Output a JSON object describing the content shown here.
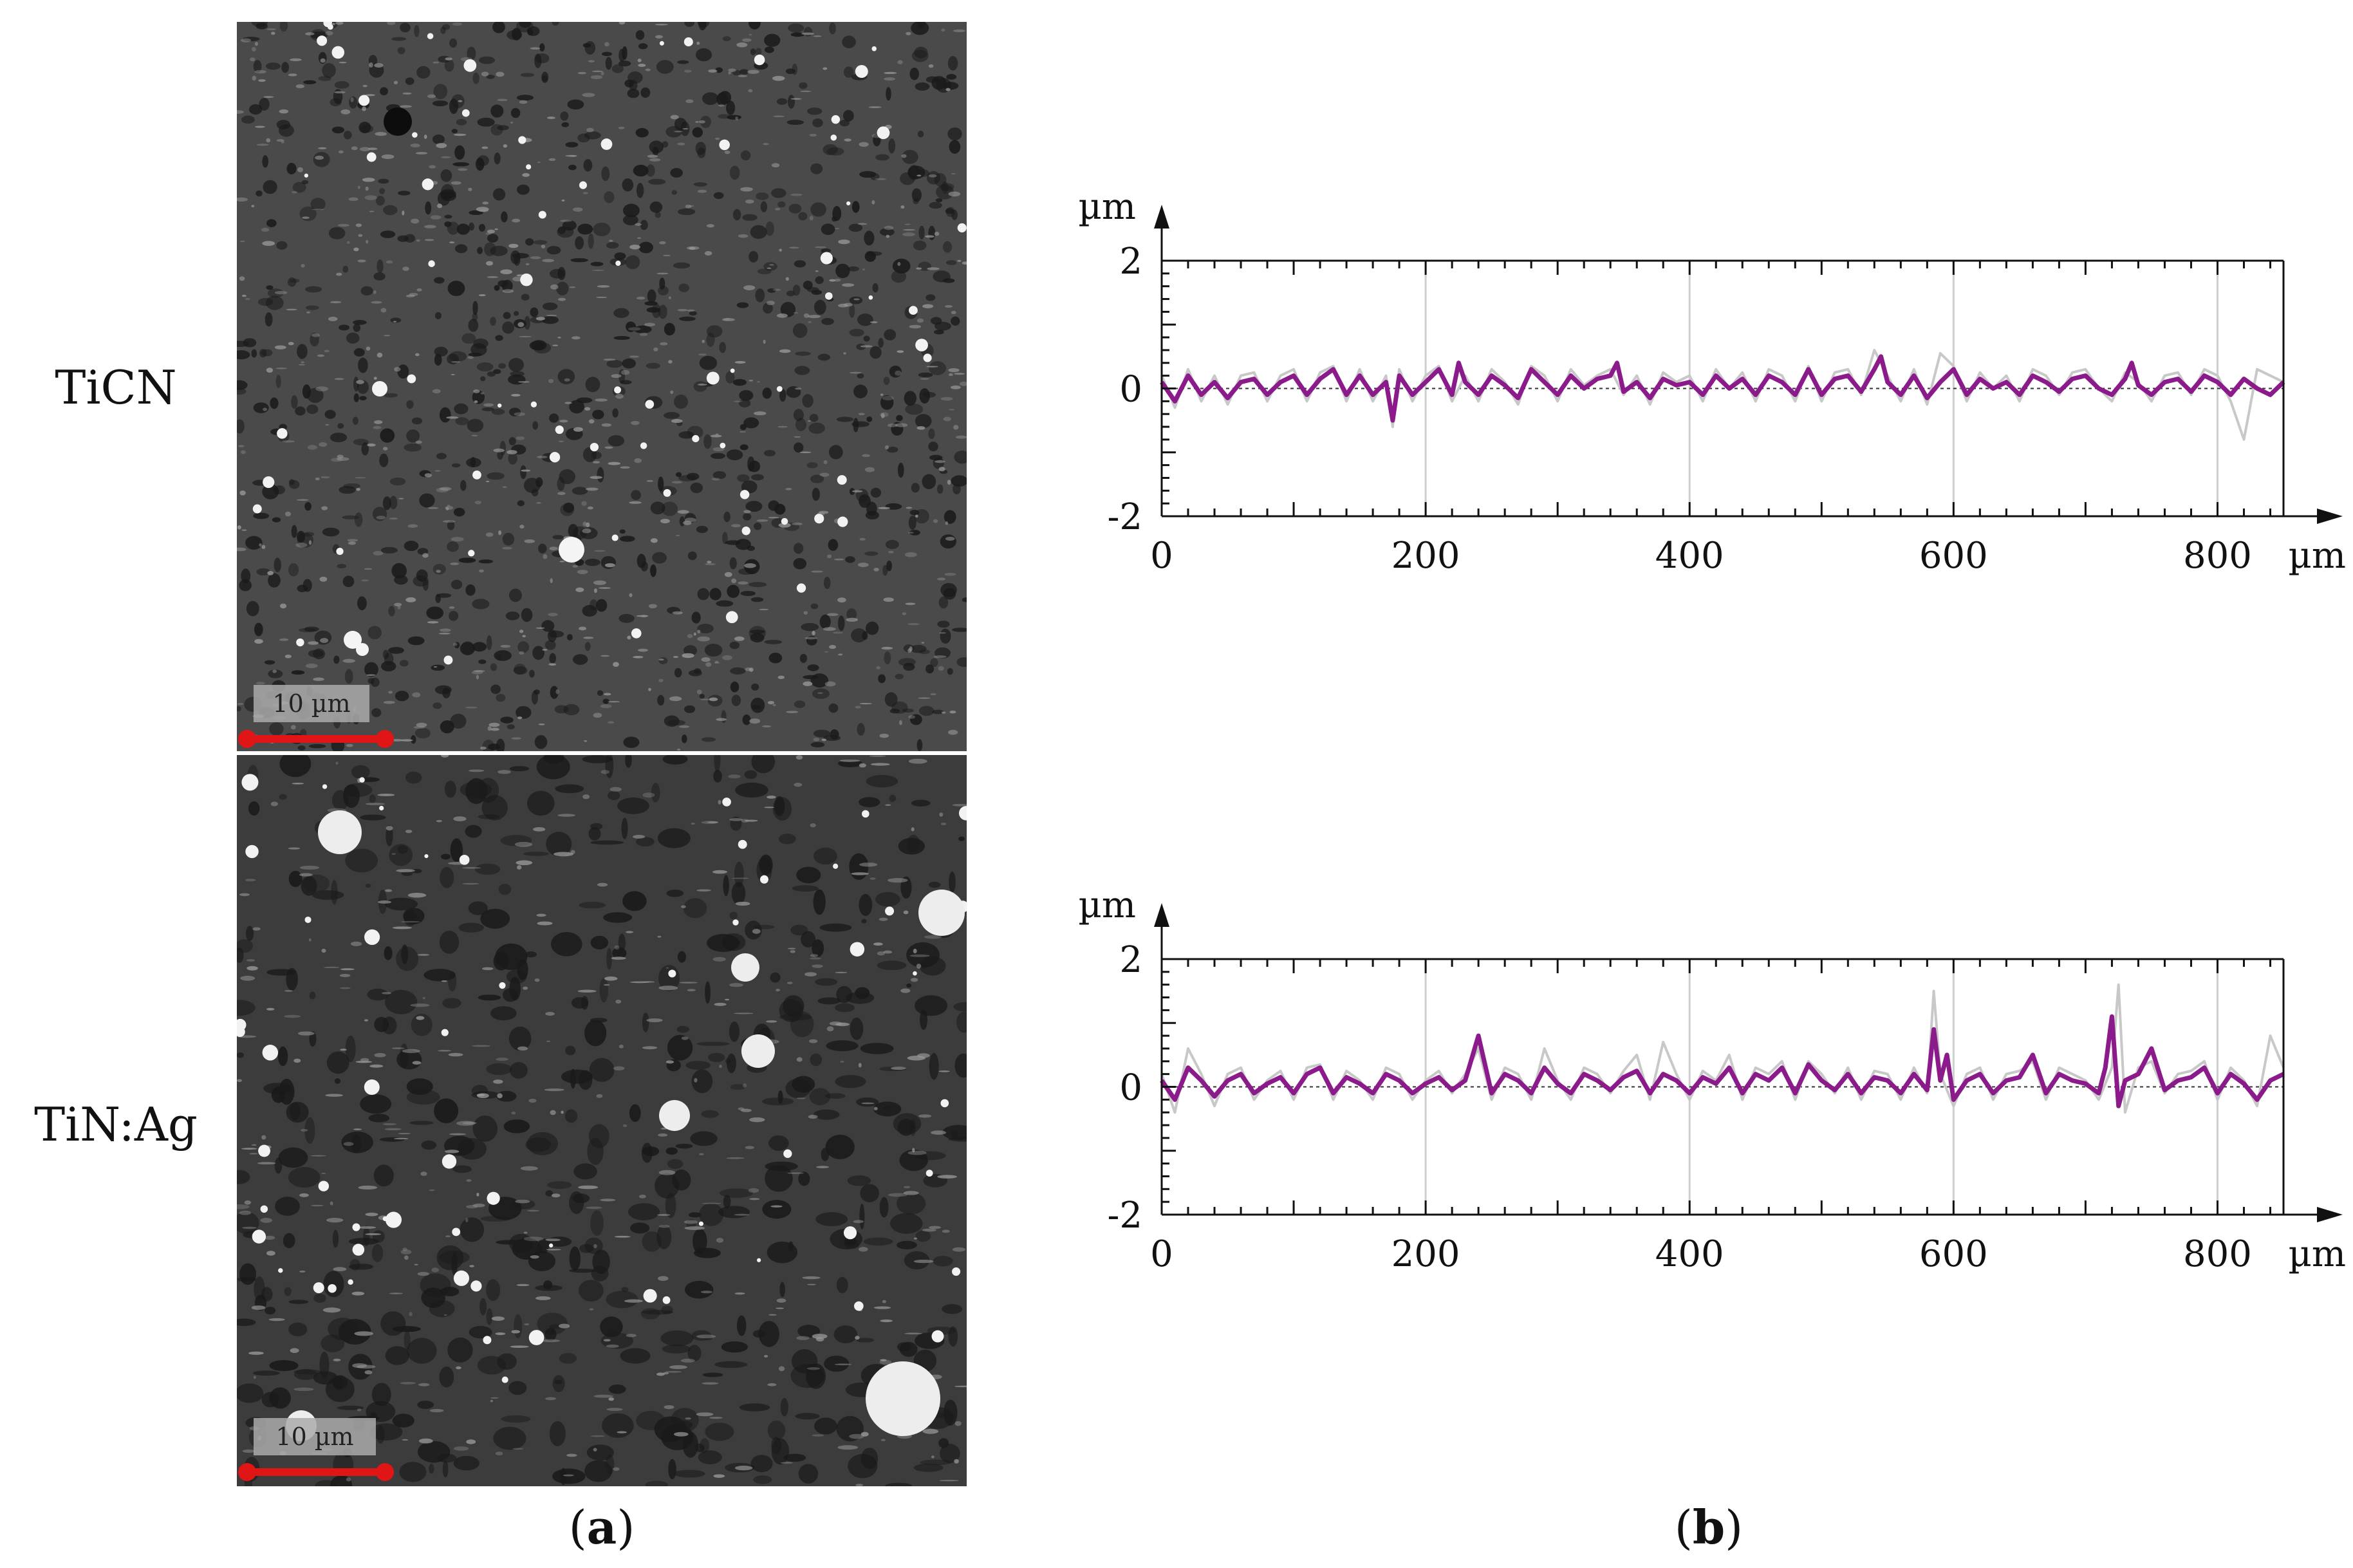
{
  "rows": [
    {
      "label": "TiCN",
      "scale_label": "10 µm"
    },
    {
      "label": "TiN:Ag",
      "scale_label": "10 µm"
    }
  ],
  "panel_labels": {
    "a_open": "(",
    "a_letter": "a",
    "a_close": ")",
    "b_open": "(",
    "b_letter": "b",
    "b_close": ")"
  },
  "colors": {
    "primary_series": "#8b1a8b",
    "background_series": "#c8c8c8",
    "scale_bar": "#e01616"
  },
  "chart_data": [
    {
      "type": "line",
      "title": "",
      "xlabel": "µm",
      "ylabel": "µm",
      "xlim": [
        0,
        850
      ],
      "ylim": [
        -2,
        2
      ],
      "x_ticks": [
        0,
        200,
        400,
        600,
        800
      ],
      "x_tick_labels": [
        "0",
        "200",
        "400",
        "600",
        "800"
      ],
      "y_ticks": [
        -2,
        0,
        2
      ],
      "y_tick_labels": [
        "-2",
        "0",
        "2"
      ],
      "grid": "vertical",
      "series": [
        {
          "role": "profile",
          "x": [
            0,
            10,
            20,
            30,
            40,
            50,
            60,
            70,
            80,
            90,
            100,
            110,
            120,
            130,
            140,
            150,
            160,
            170,
            175,
            180,
            190,
            200,
            210,
            220,
            225,
            230,
            240,
            250,
            260,
            270,
            280,
            290,
            300,
            310,
            320,
            330,
            340,
            345,
            350,
            360,
            370,
            380,
            390,
            400,
            410,
            420,
            430,
            440,
            450,
            460,
            470,
            480,
            490,
            500,
            510,
            520,
            530,
            540,
            545,
            550,
            560,
            570,
            580,
            590,
            600,
            610,
            620,
            630,
            640,
            650,
            660,
            670,
            680,
            690,
            700,
            710,
            720,
            730,
            735,
            740,
            750,
            760,
            770,
            780,
            790,
            800,
            810,
            820,
            830,
            840,
            850
          ],
          "y": [
            0.1,
            -0.2,
            0.2,
            -0.1,
            0.1,
            -0.15,
            0.1,
            0.15,
            -0.1,
            0.1,
            0.2,
            -0.1,
            0.15,
            0.3,
            -0.1,
            0.2,
            -0.1,
            0.1,
            -0.5,
            0.2,
            -0.1,
            0.1,
            0.3,
            -0.1,
            0.4,
            0.1,
            -0.1,
            0.2,
            0.05,
            -0.15,
            0.3,
            0.1,
            -0.1,
            0.2,
            0,
            0.15,
            0.2,
            0.4,
            -0.05,
            0.1,
            -0.15,
            0.15,
            0.05,
            0.1,
            -0.1,
            0.2,
            0,
            0.15,
            -0.1,
            0.2,
            0.1,
            -0.1,
            0.3,
            -0.1,
            0.15,
            0.2,
            -0.05,
            0.3,
            0.5,
            0.1,
            -0.1,
            0.2,
            -0.15,
            0.1,
            0.3,
            -0.1,
            0.15,
            0,
            0.1,
            -0.1,
            0.2,
            0.1,
            -0.05,
            0.15,
            0.2,
            0,
            -0.1,
            0.15,
            0.4,
            0.05,
            -0.1,
            0.1,
            0.15,
            -0.05,
            0.2,
            0.1,
            -0.1,
            0.15,
            0,
            -0.1,
            0.1
          ]
        },
        {
          "role": "background",
          "x": [
            0,
            10,
            20,
            30,
            40,
            50,
            60,
            70,
            80,
            90,
            100,
            110,
            120,
            130,
            140,
            150,
            160,
            170,
            175,
            180,
            190,
            200,
            210,
            220,
            230,
            240,
            250,
            260,
            270,
            280,
            290,
            300,
            310,
            320,
            330,
            340,
            350,
            360,
            370,
            380,
            390,
            400,
            410,
            420,
            430,
            440,
            450,
            460,
            470,
            480,
            490,
            500,
            510,
            520,
            530,
            540,
            550,
            560,
            570,
            580,
            590,
            600,
            610,
            620,
            630,
            640,
            650,
            660,
            670,
            680,
            690,
            700,
            710,
            720,
            730,
            740,
            750,
            760,
            770,
            780,
            790,
            800,
            810,
            820,
            830,
            840,
            850
          ],
          "y": [
            0.2,
            -0.3,
            0.3,
            -0.2,
            0.2,
            -0.25,
            0.2,
            0.25,
            -0.2,
            0.2,
            0.3,
            -0.2,
            0.25,
            0.35,
            -0.2,
            0.3,
            -0.2,
            0.2,
            -0.6,
            0.3,
            -0.2,
            0.2,
            0.35,
            -0.2,
            0.2,
            -0.2,
            0.3,
            0.1,
            -0.25,
            0.35,
            0.2,
            -0.2,
            0.3,
            0.05,
            0.2,
            0.3,
            -0.1,
            0.2,
            -0.25,
            0.25,
            0.1,
            0.2,
            -0.2,
            0.3,
            0,
            0.25,
            -0.2,
            0.3,
            0.2,
            -0.2,
            0.35,
            -0.2,
            0.25,
            0.3,
            -0.1,
            0.6,
            0.2,
            -0.2,
            0.3,
            -0.25,
            0.55,
            0.35,
            -0.2,
            0.25,
            0,
            0.2,
            -0.2,
            0.3,
            0.2,
            -0.1,
            0.25,
            0.3,
            0,
            -0.2,
            0.25,
            0.1,
            -0.2,
            0.2,
            0.25,
            -0.1,
            0.3,
            0.2,
            -0.2,
            -0.8,
            0.3,
            0.2,
            0.1
          ]
        }
      ]
    },
    {
      "type": "line",
      "title": "",
      "xlabel": "µm",
      "ylabel": "µm",
      "xlim": [
        0,
        850
      ],
      "ylim": [
        -2,
        2
      ],
      "x_ticks": [
        0,
        200,
        400,
        600,
        800
      ],
      "x_tick_labels": [
        "0",
        "200",
        "400",
        "600",
        "800"
      ],
      "y_ticks": [
        -2,
        0,
        2
      ],
      "y_tick_labels": [
        "-2",
        "0",
        "2"
      ],
      "grid": "vertical",
      "series": [
        {
          "role": "profile",
          "x": [
            0,
            10,
            20,
            30,
            40,
            50,
            60,
            70,
            80,
            90,
            100,
            110,
            120,
            130,
            140,
            150,
            160,
            170,
            180,
            190,
            200,
            210,
            220,
            230,
            240,
            250,
            260,
            270,
            280,
            290,
            300,
            310,
            320,
            330,
            340,
            350,
            360,
            370,
            380,
            390,
            400,
            410,
            420,
            430,
            440,
            450,
            460,
            470,
            480,
            490,
            500,
            510,
            520,
            530,
            540,
            550,
            560,
            570,
            580,
            585,
            590,
            595,
            600,
            610,
            620,
            630,
            640,
            650,
            660,
            670,
            680,
            690,
            700,
            710,
            715,
            720,
            725,
            730,
            740,
            750,
            760,
            770,
            780,
            790,
            800,
            810,
            820,
            830,
            840,
            850
          ],
          "y": [
            0.1,
            -0.2,
            0.3,
            0.1,
            -0.15,
            0.1,
            0.2,
            -0.1,
            0.05,
            0.15,
            -0.1,
            0.2,
            0.3,
            -0.1,
            0.15,
            0.05,
            -0.1,
            0.2,
            0.1,
            -0.1,
            0.05,
            0.15,
            -0.05,
            0.1,
            0.8,
            -0.1,
            0.2,
            0.1,
            -0.1,
            0.3,
            0.05,
            -0.1,
            0.2,
            0.1,
            -0.05,
            0.15,
            0.25,
            -0.1,
            0.2,
            0.1,
            -0.1,
            0.15,
            0.05,
            0.3,
            -0.1,
            0.2,
            0.1,
            0.3,
            -0.1,
            0.35,
            0.1,
            -0.05,
            0.2,
            -0.1,
            0.15,
            0.1,
            -0.1,
            0.2,
            -0.05,
            0.9,
            0.1,
            0.5,
            -0.2,
            0.1,
            0.2,
            -0.1,
            0.1,
            0.15,
            0.5,
            -0.1,
            0.2,
            0.1,
            0.05,
            -0.1,
            0.3,
            1.1,
            -0.3,
            0.1,
            0.2,
            0.6,
            -0.05,
            0.1,
            0.15,
            0.3,
            -0.1,
            0.2,
            0.05,
            -0.2,
            0.1,
            0.2
          ]
        },
        {
          "role": "background",
          "x": [
            0,
            10,
            20,
            30,
            40,
            50,
            60,
            70,
            80,
            90,
            100,
            110,
            120,
            130,
            140,
            150,
            160,
            170,
            180,
            190,
            200,
            210,
            220,
            230,
            240,
            250,
            260,
            270,
            280,
            290,
            300,
            310,
            320,
            330,
            340,
            350,
            360,
            370,
            380,
            390,
            400,
            410,
            420,
            430,
            440,
            450,
            460,
            470,
            480,
            490,
            500,
            510,
            520,
            530,
            540,
            550,
            560,
            570,
            580,
            585,
            590,
            600,
            610,
            620,
            630,
            640,
            650,
            660,
            670,
            680,
            690,
            700,
            710,
            720,
            725,
            730,
            740,
            750,
            760,
            770,
            780,
            790,
            800,
            810,
            820,
            830,
            840,
            850
          ],
          "y": [
            0.2,
            -0.4,
            0.6,
            0.2,
            -0.3,
            0.2,
            0.3,
            -0.2,
            0.1,
            0.25,
            -0.2,
            0.3,
            0.35,
            -0.2,
            0.25,
            0.1,
            -0.2,
            0.3,
            0.2,
            -0.2,
            0.1,
            0.25,
            -0.1,
            0.2,
            0.6,
            -0.2,
            0.3,
            0.2,
            -0.2,
            0.6,
            0.1,
            -0.2,
            0.3,
            0.2,
            -0.1,
            0.25,
            0.5,
            -0.2,
            0.7,
            0.2,
            -0.2,
            0.25,
            0.1,
            0.5,
            -0.2,
            0.3,
            0.2,
            0.4,
            -0.2,
            0.4,
            0.2,
            -0.1,
            0.3,
            -0.2,
            0.25,
            0.2,
            -0.2,
            0.3,
            -0.1,
            1.5,
            0.2,
            -0.3,
            0.2,
            0.3,
            -0.2,
            0.2,
            0.25,
            0.4,
            -0.2,
            0.3,
            0.2,
            0.1,
            -0.2,
            0.3,
            1.6,
            -0.4,
            0.3,
            0.4,
            -0.1,
            0.2,
            0.25,
            0.4,
            -0.2,
            0.3,
            0.1,
            -0.3,
            0.8,
            0.3
          ]
        }
      ]
    }
  ]
}
